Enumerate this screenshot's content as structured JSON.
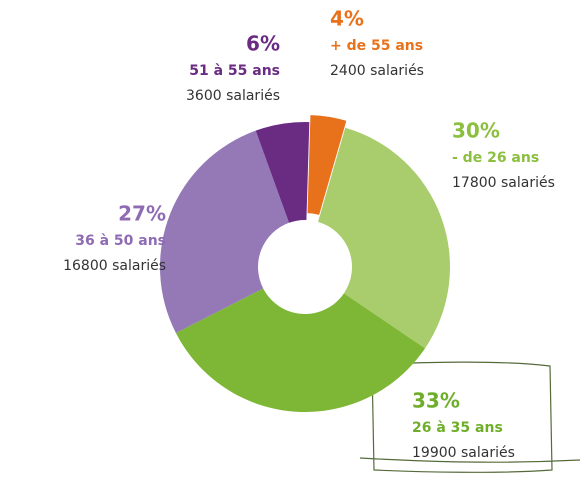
{
  "chart_data": {
    "type": "pie",
    "donut": true,
    "categories": [
      "+ de 55 ans",
      "- de 26 ans",
      "26 à 35 ans",
      "36 à 50 ans",
      "51 à 55 ans"
    ],
    "values": [
      4,
      30,
      33,
      27,
      6
    ],
    "value_labels": [
      "4%",
      "30%",
      "33%",
      "27%",
      "6%"
    ],
    "category_details": [
      "2400 salariés",
      "17800 salariés",
      "19900 salariés",
      "16800 salariés",
      "3600 salariés"
    ],
    "colors": [
      "#e8721c",
      "#a9cd6c",
      "#7db735",
      "#9479b6",
      "#6a2b83"
    ],
    "label_colors": [
      "#e8721c",
      "#8cbf3f",
      "#6fae2a",
      "#8e6bb2",
      "#6a2b83"
    ]
  }
}
